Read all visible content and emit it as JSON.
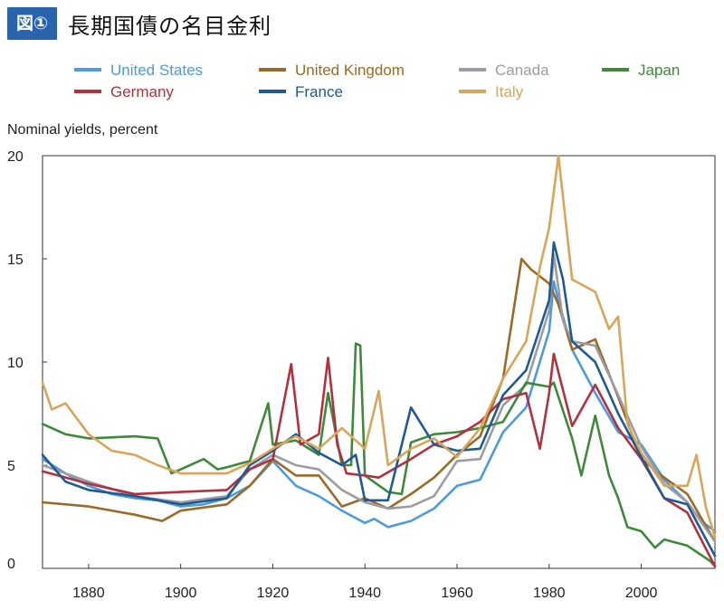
{
  "figure": {
    "badge": "図①",
    "title": "長期国債の名目金利"
  },
  "colors": {
    "United States": "#4c9be0",
    "United Kingdom": "#9c6a24",
    "Canada": "#9c9ca6",
    "Japan": "#3d8a3a",
    "Germany": "#b3303d",
    "France": "#1f5a93",
    "Italy": "#d9a55a"
  },
  "chart_data": {
    "type": "line",
    "title": "",
    "ylabel": "Nominal yields, percent",
    "xlabel": "",
    "xlim": [
      1870,
      2016
    ],
    "ylim": [
      0,
      20
    ],
    "xticks": [
      1880,
      1900,
      1920,
      1940,
      1960,
      1980,
      2000
    ],
    "yticks": [
      0,
      5,
      10,
      15,
      20
    ],
    "grid": false,
    "legend_position": "top",
    "series": [
      {
        "name": "United States",
        "points": [
          [
            1870,
            5.3
          ],
          [
            1875,
            4.6
          ],
          [
            1880,
            4.0
          ],
          [
            1885,
            3.6
          ],
          [
            1890,
            3.4
          ],
          [
            1895,
            3.3
          ],
          [
            1900,
            3.0
          ],
          [
            1905,
            3.1
          ],
          [
            1910,
            3.4
          ],
          [
            1915,
            4.0
          ],
          [
            1920,
            5.2
          ],
          [
            1925,
            4.0
          ],
          [
            1930,
            3.5
          ],
          [
            1935,
            2.8
          ],
          [
            1940,
            2.2
          ],
          [
            1942,
            2.4
          ],
          [
            1945,
            2.0
          ],
          [
            1950,
            2.3
          ],
          [
            1955,
            2.9
          ],
          [
            1960,
            4.0
          ],
          [
            1965,
            4.3
          ],
          [
            1970,
            6.6
          ],
          [
            1975,
            7.8
          ],
          [
            1980,
            11.5
          ],
          [
            1981,
            13.9
          ],
          [
            1982,
            13.0
          ],
          [
            1985,
            10.6
          ],
          [
            1990,
            8.5
          ],
          [
            1995,
            6.6
          ],
          [
            2000,
            6.0
          ],
          [
            2005,
            4.3
          ],
          [
            2010,
            3.2
          ],
          [
            2013,
            2.3
          ],
          [
            2016,
            1.8
          ]
        ]
      },
      {
        "name": "United Kingdom",
        "points": [
          [
            1870,
            3.2
          ],
          [
            1880,
            3.0
          ],
          [
            1890,
            2.6
          ],
          [
            1896,
            2.3
          ],
          [
            1900,
            2.8
          ],
          [
            1910,
            3.1
          ],
          [
            1915,
            4.0
          ],
          [
            1920,
            5.3
          ],
          [
            1925,
            4.5
          ],
          [
            1930,
            4.5
          ],
          [
            1935,
            3.0
          ],
          [
            1940,
            3.4
          ],
          [
            1945,
            2.9
          ],
          [
            1950,
            3.6
          ],
          [
            1955,
            4.4
          ],
          [
            1960,
            5.5
          ],
          [
            1965,
            6.4
          ],
          [
            1970,
            9.2
          ],
          [
            1974,
            15.0
          ],
          [
            1976,
            14.5
          ],
          [
            1980,
            13.8
          ],
          [
            1982,
            12.8
          ],
          [
            1985,
            10.6
          ],
          [
            1990,
            11.1
          ],
          [
            1995,
            8.3
          ],
          [
            2000,
            5.3
          ],
          [
            2005,
            4.4
          ],
          [
            2010,
            3.6
          ],
          [
            2016,
            1.3
          ]
        ]
      },
      {
        "name": "Canada",
        "points": [
          [
            1870,
            5.0
          ],
          [
            1880,
            4.2
          ],
          [
            1890,
            3.5
          ],
          [
            1900,
            3.2
          ],
          [
            1910,
            3.5
          ],
          [
            1915,
            4.8
          ],
          [
            1920,
            5.5
          ],
          [
            1925,
            5.0
          ],
          [
            1930,
            4.8
          ],
          [
            1935,
            3.8
          ],
          [
            1940,
            3.2
          ],
          [
            1945,
            2.9
          ],
          [
            1950,
            3.0
          ],
          [
            1955,
            3.5
          ],
          [
            1960,
            5.2
          ],
          [
            1965,
            5.3
          ],
          [
            1970,
            7.9
          ],
          [
            1975,
            8.9
          ],
          [
            1980,
            12.5
          ],
          [
            1981,
            15.2
          ],
          [
            1983,
            12.0
          ],
          [
            1985,
            11.0
          ],
          [
            1990,
            10.8
          ],
          [
            1995,
            8.4
          ],
          [
            2000,
            5.9
          ],
          [
            2005,
            4.1
          ],
          [
            2010,
            3.2
          ],
          [
            2016,
            1.3
          ]
        ]
      },
      {
        "name": "Japan",
        "points": [
          [
            1870,
            7.0
          ],
          [
            1875,
            6.5
          ],
          [
            1880,
            6.3
          ],
          [
            1890,
            6.4
          ],
          [
            1895,
            6.3
          ],
          [
            1898,
            4.6
          ],
          [
            1900,
            4.8
          ],
          [
            1905,
            5.3
          ],
          [
            1908,
            4.8
          ],
          [
            1910,
            4.9
          ],
          [
            1915,
            5.2
          ],
          [
            1919,
            8.0
          ],
          [
            1920,
            6.0
          ],
          [
            1925,
            6.2
          ],
          [
            1930,
            5.5
          ],
          [
            1932,
            8.5
          ],
          [
            1935,
            5.0
          ],
          [
            1937,
            5.0
          ],
          [
            1938,
            10.9
          ],
          [
            1939,
            10.8
          ],
          [
            1940,
            4.5
          ],
          [
            1945,
            3.7
          ],
          [
            1948,
            3.6
          ],
          [
            1950,
            6.1
          ],
          [
            1955,
            6.5
          ],
          [
            1960,
            6.6
          ],
          [
            1965,
            6.8
          ],
          [
            1970,
            7.1
          ],
          [
            1975,
            9.0
          ],
          [
            1980,
            8.8
          ],
          [
            1981,
            9.0
          ],
          [
            1985,
            6.3
          ],
          [
            1987,
            4.5
          ],
          [
            1990,
            7.4
          ],
          [
            1993,
            4.5
          ],
          [
            1995,
            3.4
          ],
          [
            1997,
            2.0
          ],
          [
            2000,
            1.8
          ],
          [
            2003,
            1.0
          ],
          [
            2005,
            1.4
          ],
          [
            2010,
            1.1
          ],
          [
            2015,
            0.35
          ],
          [
            2016,
            0.1
          ]
        ]
      },
      {
        "name": "Germany",
        "points": [
          [
            1870,
            4.7
          ],
          [
            1880,
            4.1
          ],
          [
            1890,
            3.6
          ],
          [
            1900,
            3.7
          ],
          [
            1910,
            3.8
          ],
          [
            1915,
            4.8
          ],
          [
            1920,
            5.3
          ],
          [
            1924,
            9.9
          ],
          [
            1926,
            6.0
          ],
          [
            1930,
            6.5
          ],
          [
            1932,
            10.2
          ],
          [
            1934,
            6.0
          ],
          [
            1936,
            4.6
          ],
          [
            1940,
            4.5
          ],
          [
            1943,
            4.4
          ],
          [
            1950,
            5.3
          ],
          [
            1955,
            6.0
          ],
          [
            1960,
            6.4
          ],
          [
            1965,
            7.1
          ],
          [
            1970,
            8.2
          ],
          [
            1975,
            8.5
          ],
          [
            1978,
            5.8
          ],
          [
            1980,
            8.5
          ],
          [
            1981,
            10.4
          ],
          [
            1985,
            6.9
          ],
          [
            1990,
            8.9
          ],
          [
            1995,
            6.8
          ],
          [
            2000,
            5.3
          ],
          [
            2005,
            3.4
          ],
          [
            2010,
            2.7
          ],
          [
            2016,
            0.1
          ]
        ]
      },
      {
        "name": "France",
        "points": [
          [
            1870,
            5.5
          ],
          [
            1875,
            4.2
          ],
          [
            1880,
            3.8
          ],
          [
            1890,
            3.5
          ],
          [
            1900,
            3.1
          ],
          [
            1910,
            3.4
          ],
          [
            1915,
            5.0
          ],
          [
            1920,
            5.7
          ],
          [
            1925,
            6.5
          ],
          [
            1930,
            5.6
          ],
          [
            1935,
            5.0
          ],
          [
            1938,
            5.5
          ],
          [
            1940,
            3.3
          ],
          [
            1945,
            3.3
          ],
          [
            1950,
            7.8
          ],
          [
            1955,
            6.0
          ],
          [
            1960,
            5.7
          ],
          [
            1965,
            5.8
          ],
          [
            1970,
            8.4
          ],
          [
            1975,
            9.6
          ],
          [
            1980,
            13.0
          ],
          [
            1981,
            15.8
          ],
          [
            1983,
            14.0
          ],
          [
            1985,
            11.0
          ],
          [
            1990,
            10.0
          ],
          [
            1995,
            7.5
          ],
          [
            2000,
            5.4
          ],
          [
            2005,
            3.4
          ],
          [
            2010,
            3.1
          ],
          [
            2016,
            0.6
          ]
        ]
      },
      {
        "name": "Italy",
        "points": [
          [
            1870,
            9.0
          ],
          [
            1872,
            7.7
          ],
          [
            1875,
            8.0
          ],
          [
            1880,
            6.5
          ],
          [
            1885,
            5.7
          ],
          [
            1890,
            5.5
          ],
          [
            1895,
            5.0
          ],
          [
            1900,
            4.6
          ],
          [
            1910,
            4.6
          ],
          [
            1915,
            5.1
          ],
          [
            1920,
            5.8
          ],
          [
            1925,
            6.4
          ],
          [
            1930,
            5.8
          ],
          [
            1935,
            6.8
          ],
          [
            1940,
            5.8
          ],
          [
            1943,
            8.6
          ],
          [
            1945,
            5.0
          ],
          [
            1950,
            5.8
          ],
          [
            1955,
            6.3
          ],
          [
            1960,
            5.4
          ],
          [
            1965,
            6.8
          ],
          [
            1970,
            9.2
          ],
          [
            1975,
            11.0
          ],
          [
            1978,
            14.6
          ],
          [
            1980,
            16.5
          ],
          [
            1982,
            20.0
          ],
          [
            1985,
            14.0
          ],
          [
            1990,
            13.4
          ],
          [
            1993,
            11.6
          ],
          [
            1995,
            12.2
          ],
          [
            1997,
            7.0
          ],
          [
            2000,
            5.6
          ],
          [
            2005,
            4.0
          ],
          [
            2010,
            4.0
          ],
          [
            2012,
            5.5
          ],
          [
            2014,
            3.0
          ],
          [
            2016,
            1.5
          ]
        ]
      }
    ]
  }
}
